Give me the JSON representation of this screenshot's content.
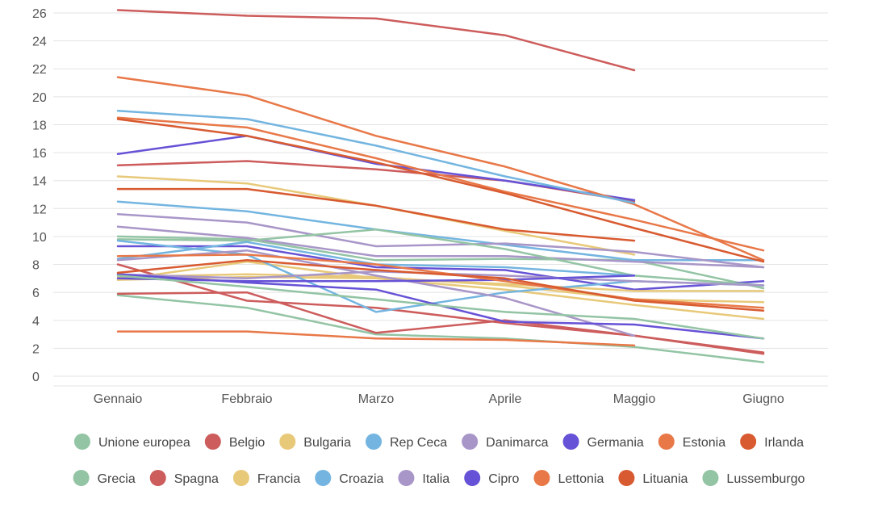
{
  "chart_data": {
    "type": "line",
    "title": "",
    "xlabel": "",
    "ylabel": "",
    "ylim": [
      0,
      26
    ],
    "yticks": [
      0,
      2,
      4,
      6,
      8,
      10,
      12,
      14,
      16,
      18,
      20,
      22,
      24,
      26
    ],
    "ytick_labels": [
      "0",
      "2",
      "4",
      "6",
      "8",
      "10",
      "12",
      "14",
      "16",
      "18",
      "20",
      "22",
      "24",
      "26"
    ],
    "grid": true,
    "legend_position": "bottom",
    "categories": [
      "Gennaio",
      "Febbraio",
      "Marzo",
      "Aprile",
      "Maggio",
      "Giugno"
    ],
    "series": [
      {
        "name": "Unione europea",
        "color": "#93c4a4",
        "values": [
          10.0,
          9.8,
          8.3,
          8.4,
          8.3,
          6.3
        ]
      },
      {
        "name": "Belgio",
        "color": "#cd5c5c",
        "values": [
          15.1,
          15.4,
          14.8,
          14.0,
          12.5,
          null
        ]
      },
      {
        "name": "Bulgaria",
        "color": "#e8c97a",
        "values": [
          14.3,
          13.8,
          12.2,
          10.4,
          8.7,
          null
        ]
      },
      {
        "name": "Rep Ceca",
        "color": "#73b5e0",
        "values": [
          12.5,
          11.8,
          10.5,
          9.4,
          8.3,
          8.3
        ]
      },
      {
        "name": "Danimarca",
        "color": "#a896c8",
        "values": [
          11.6,
          11.0,
          9.3,
          9.5,
          8.9,
          7.8
        ]
      },
      {
        "name": "Germania",
        "color": "#6652d6",
        "values": [
          15.9,
          17.2,
          15.2,
          14.0,
          12.6,
          null
        ]
      },
      {
        "name": "Estonia",
        "color": "#e87848",
        "values": [
          21.4,
          20.1,
          17.2,
          15.0,
          12.3,
          8.3
        ]
      },
      {
        "name": "Irlanda",
        "color": "#d85a30",
        "values": [
          13.4,
          13.4,
          12.2,
          10.5,
          9.7,
          null
        ]
      },
      {
        "name": "Grecia",
        "color": "#93c4a4",
        "values": [
          5.8,
          4.9,
          3.0,
          2.7,
          2.1,
          1.0
        ]
      },
      {
        "name": "Spagna",
        "color": "#cd5c5c",
        "values": [
          26.2,
          25.8,
          25.6,
          24.4,
          21.9,
          null
        ]
      },
      {
        "name": "Francia",
        "color": "#e8c97a",
        "values": [
          7.1,
          7.3,
          7.1,
          6.5,
          5.5,
          5.3
        ]
      },
      {
        "name": "Croazia",
        "color": "#73b5e0",
        "values": [
          19.0,
          18.4,
          16.5,
          14.3,
          12.4,
          null
        ]
      },
      {
        "name": "Italia",
        "color": "#a896c8",
        "values": [
          10.7,
          9.9,
          8.6,
          8.6,
          8.2,
          7.8
        ]
      },
      {
        "name": "Cipro",
        "color": "#6652d6",
        "values": [
          9.3,
          9.3,
          7.8,
          7.6,
          6.2,
          6.8
        ]
      },
      {
        "name": "Lettonia",
        "color": "#e87848",
        "values": [
          18.5,
          17.8,
          15.6,
          13.2,
          11.2,
          9.0
        ]
      },
      {
        "name": "Lituania",
        "color": "#d85a30",
        "values": [
          18.4,
          17.2,
          15.3,
          13.1,
          10.6,
          8.2
        ]
      },
      {
        "name": "Lussemburgo",
        "color": "#93c4a4",
        "values": [
          9.8,
          9.7,
          10.5,
          9.1,
          7.2,
          6.5
        ]
      },
      {
        "name": "",
        "color": "#cd5c5c",
        "values": [
          5.9,
          6.0,
          3.1,
          4.0,
          2.9,
          1.7
        ]
      },
      {
        "name": "",
        "color": "#cd5c5c",
        "values": [
          8.0,
          5.4,
          4.9,
          3.8,
          2.9,
          1.6
        ]
      },
      {
        "name": "",
        "color": "#e8c97a",
        "values": [
          6.9,
          8.2,
          7.0,
          6.2,
          5.1,
          4.1
        ]
      },
      {
        "name": "",
        "color": "#e8c97a",
        "values": [
          6.9,
          7.1,
          7.0,
          6.6,
          6.1,
          6.1
        ]
      },
      {
        "name": "",
        "color": "#73b5e0",
        "values": [
          9.7,
          8.7,
          4.6,
          6.0,
          6.8,
          6.5
        ]
      },
      {
        "name": "",
        "color": "#73b5e0",
        "values": [
          8.4,
          9.6,
          8.0,
          7.8,
          7.2,
          null
        ]
      },
      {
        "name": "",
        "color": "#a896c8",
        "values": [
          8.3,
          9.0,
          7.2,
          5.6,
          2.9,
          null
        ]
      },
      {
        "name": "",
        "color": "#a896c8",
        "values": [
          7.3,
          7.0,
          7.5,
          7.2,
          6.8,
          6.5
        ]
      },
      {
        "name": "",
        "color": "#6652d6",
        "values": [
          7.3,
          6.7,
          6.2,
          3.9,
          3.7,
          2.7
        ]
      },
      {
        "name": "",
        "color": "#6652d6",
        "values": [
          7.0,
          6.8,
          6.8,
          6.9,
          7.2,
          null
        ]
      },
      {
        "name": "",
        "color": "#e87848",
        "values": [
          8.6,
          8.7,
          8.0,
          6.8,
          5.5,
          4.9
        ]
      },
      {
        "name": "",
        "color": "#e87848",
        "values": [
          3.2,
          3.2,
          2.7,
          2.6,
          2.2,
          null
        ]
      },
      {
        "name": "",
        "color": "#d85a30",
        "values": [
          7.4,
          8.3,
          7.6,
          7.0,
          5.4,
          4.7
        ]
      },
      {
        "name": "",
        "color": "#93c4a4",
        "values": [
          7.2,
          6.4,
          5.5,
          4.6,
          4.1,
          2.7
        ]
      }
    ]
  }
}
